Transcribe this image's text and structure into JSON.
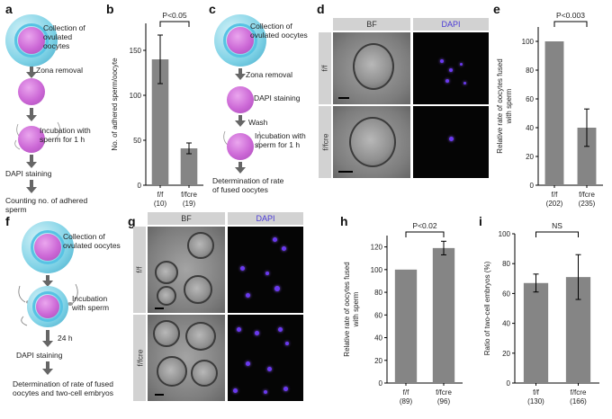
{
  "panels": {
    "a": {
      "label": "a",
      "steps": [
        "Collection of ovulated oocytes",
        "Zona removal",
        "Incubation with sperm for 1 h",
        "DAPI staining",
        "Counting no. of adhered sperm"
      ]
    },
    "c": {
      "label": "c",
      "steps": [
        "Collection of ovulated oocytes",
        "Zona removal",
        "DAPI staining",
        "Wash",
        "Incubation with sperm for 1 h",
        "Determination of rate of fused oocytes"
      ]
    },
    "d": {
      "label": "d",
      "col_bf": "BF",
      "col_dapi": "DAPI",
      "row1": "f/f",
      "row2": "f/fcre"
    },
    "f": {
      "label": "f",
      "steps": [
        "Collection of ovulated oocytes",
        "Incubation with sperm",
        "24 h",
        "DAPI staining",
        "Determination of rate of fused oocytes and two-cell embryos"
      ]
    },
    "g": {
      "label": "g",
      "col_bf": "BF",
      "col_dapi": "DAPI",
      "row1": "f/f",
      "row2": "f/fcre"
    }
  },
  "chart_data": [
    {
      "id": "b",
      "panel_label": "b",
      "type": "bar",
      "categories": [
        "f/f",
        "f/fcre"
      ],
      "counts": [
        "(10)",
        "(19)"
      ],
      "values": [
        140,
        41
      ],
      "errors": [
        27,
        6
      ],
      "ylabel": "No. of adhered sperm/oocyte",
      "ylim": [
        0,
        180
      ],
      "yticks": [
        0,
        50,
        100,
        150
      ],
      "annotation": "P<0.05"
    },
    {
      "id": "e",
      "panel_label": "e",
      "type": "bar",
      "categories": [
        "f/f",
        "f/fcre"
      ],
      "counts": [
        "(202)",
        "(235)"
      ],
      "values": [
        100,
        40
      ],
      "errors": [
        0,
        13
      ],
      "ylabel": "Relative rate of oocytes fused with sperm",
      "ylim": [
        0,
        110
      ],
      "yticks": [
        0,
        20,
        40,
        60,
        80,
        100
      ],
      "annotation": "P<0.003"
    },
    {
      "id": "h",
      "panel_label": "h",
      "type": "bar",
      "categories": [
        "f/f",
        "f/fcre"
      ],
      "counts": [
        "(89)",
        "(96)"
      ],
      "values": [
        100,
        119
      ],
      "errors": [
        0,
        6
      ],
      "ylabel": "Relative rate of oocytes fused with sperm",
      "ylim": [
        0,
        130
      ],
      "yticks": [
        0,
        20,
        40,
        60,
        80,
        100,
        120
      ],
      "annotation": "P<0.02"
    },
    {
      "id": "i",
      "panel_label": "i",
      "type": "bar",
      "categories": [
        "f/f",
        "f/fcre"
      ],
      "counts": [
        "(130)",
        "(166)"
      ],
      "values": [
        67,
        71
      ],
      "errors": [
        6,
        15
      ],
      "ylabel": "Ratio of two-cell embryos (%)",
      "ylim": [
        0,
        100
      ],
      "yticks": [
        0,
        20,
        40,
        60,
        80,
        100
      ],
      "annotation": "NS"
    }
  ],
  "colors": {
    "bar": "#858585",
    "nucleus": "#cc68d6",
    "zona": "#57c3e4",
    "dapi": "#6a39f0"
  }
}
